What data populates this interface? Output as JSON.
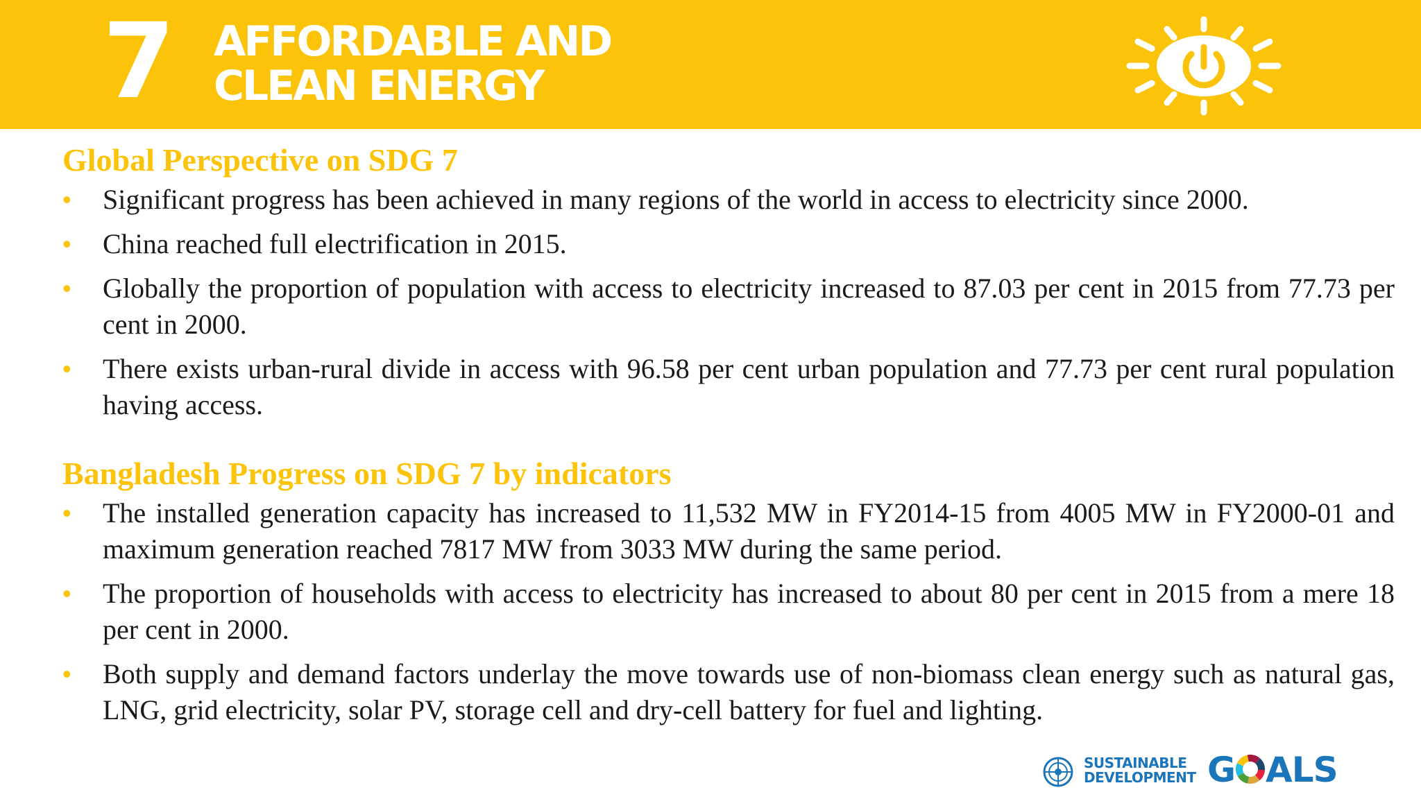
{
  "header": {
    "goal_number": "7",
    "title_line1": "AFFORDABLE AND",
    "title_line2": "CLEAN ENERGY",
    "icon": "sun-power-icon"
  },
  "sections": [
    {
      "heading": "Global Perspective on SDG 7",
      "bullets": [
        "Significant progress has been achieved in many regions of the world in access to electricity since 2000.",
        "China reached full electrification in 2015.",
        "Globally the proportion of population with access to electricity increased to 87.03 per cent in 2015 from 77.73 per cent in 2000.",
        "There exists urban-rural divide in access with 96.58 per cent urban population and 77.73 per cent rural population having access."
      ]
    },
    {
      "heading": "Bangladesh Progress on SDG 7 by indicators",
      "bullets": [
        "The installed generation capacity has increased to 11,532 MW in FY2014-15 from 4005 MW in FY2000-01 and maximum generation reached 7817 MW from 3033 MW during the same period.",
        "The proportion of households with access to electricity has increased to about 80 per cent in 2015 from a mere 18 per cent in 2000.",
        "Both supply and demand factors underlay the move towards use of non-biomass clean energy such as natural gas, LNG, grid electricity, solar PV, storage cell and dry-cell battery for fuel and lighting."
      ]
    }
  ],
  "bullet_symbol": "•",
  "footer": {
    "line1": "SUSTAINABLE",
    "line2": "DEVELOPMENT",
    "goals_prefix": "G",
    "goals_suffix": "ALS",
    "emblem_icon": "un-emblem-icon",
    "wheel_icon": "sdg-wheel-icon"
  },
  "colors": {
    "header_bg": "#FCC30B",
    "heading_text": "#FCC30B",
    "body_text": "#1a1a1a",
    "logo_blue": "#1A75BB"
  }
}
